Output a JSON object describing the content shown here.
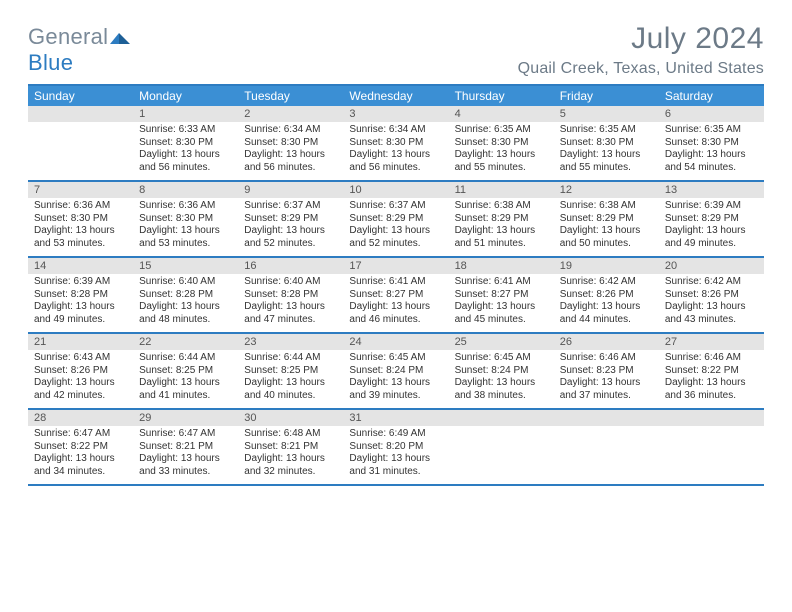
{
  "brand": {
    "part1": "General",
    "part2": "Blue"
  },
  "title": "July 2024",
  "location": "Quail Creek, Texas, United States",
  "colors": {
    "header_bar": "#3b8fd4",
    "rule": "#2d7cc1",
    "daynum_bg": "#e4e4e4",
    "text_muted": "#6c7a87",
    "logo_gray": "#7a8a99",
    "logo_blue": "#2d7cc1"
  },
  "dow": [
    "Sunday",
    "Monday",
    "Tuesday",
    "Wednesday",
    "Thursday",
    "Friday",
    "Saturday"
  ],
  "weeks": [
    [
      null,
      {
        "d": "1",
        "sr": "Sunrise: 6:33 AM",
        "ss": "Sunset: 8:30 PM",
        "dl1": "Daylight: 13 hours",
        "dl2": "and 56 minutes."
      },
      {
        "d": "2",
        "sr": "Sunrise: 6:34 AM",
        "ss": "Sunset: 8:30 PM",
        "dl1": "Daylight: 13 hours",
        "dl2": "and 56 minutes."
      },
      {
        "d": "3",
        "sr": "Sunrise: 6:34 AM",
        "ss": "Sunset: 8:30 PM",
        "dl1": "Daylight: 13 hours",
        "dl2": "and 56 minutes."
      },
      {
        "d": "4",
        "sr": "Sunrise: 6:35 AM",
        "ss": "Sunset: 8:30 PM",
        "dl1": "Daylight: 13 hours",
        "dl2": "and 55 minutes."
      },
      {
        "d": "5",
        "sr": "Sunrise: 6:35 AM",
        "ss": "Sunset: 8:30 PM",
        "dl1": "Daylight: 13 hours",
        "dl2": "and 55 minutes."
      },
      {
        "d": "6",
        "sr": "Sunrise: 6:35 AM",
        "ss": "Sunset: 8:30 PM",
        "dl1": "Daylight: 13 hours",
        "dl2": "and 54 minutes."
      }
    ],
    [
      {
        "d": "7",
        "sr": "Sunrise: 6:36 AM",
        "ss": "Sunset: 8:30 PM",
        "dl1": "Daylight: 13 hours",
        "dl2": "and 53 minutes."
      },
      {
        "d": "8",
        "sr": "Sunrise: 6:36 AM",
        "ss": "Sunset: 8:30 PM",
        "dl1": "Daylight: 13 hours",
        "dl2": "and 53 minutes."
      },
      {
        "d": "9",
        "sr": "Sunrise: 6:37 AM",
        "ss": "Sunset: 8:29 PM",
        "dl1": "Daylight: 13 hours",
        "dl2": "and 52 minutes."
      },
      {
        "d": "10",
        "sr": "Sunrise: 6:37 AM",
        "ss": "Sunset: 8:29 PM",
        "dl1": "Daylight: 13 hours",
        "dl2": "and 52 minutes."
      },
      {
        "d": "11",
        "sr": "Sunrise: 6:38 AM",
        "ss": "Sunset: 8:29 PM",
        "dl1": "Daylight: 13 hours",
        "dl2": "and 51 minutes."
      },
      {
        "d": "12",
        "sr": "Sunrise: 6:38 AM",
        "ss": "Sunset: 8:29 PM",
        "dl1": "Daylight: 13 hours",
        "dl2": "and 50 minutes."
      },
      {
        "d": "13",
        "sr": "Sunrise: 6:39 AM",
        "ss": "Sunset: 8:29 PM",
        "dl1": "Daylight: 13 hours",
        "dl2": "and 49 minutes."
      }
    ],
    [
      {
        "d": "14",
        "sr": "Sunrise: 6:39 AM",
        "ss": "Sunset: 8:28 PM",
        "dl1": "Daylight: 13 hours",
        "dl2": "and 49 minutes."
      },
      {
        "d": "15",
        "sr": "Sunrise: 6:40 AM",
        "ss": "Sunset: 8:28 PM",
        "dl1": "Daylight: 13 hours",
        "dl2": "and 48 minutes."
      },
      {
        "d": "16",
        "sr": "Sunrise: 6:40 AM",
        "ss": "Sunset: 8:28 PM",
        "dl1": "Daylight: 13 hours",
        "dl2": "and 47 minutes."
      },
      {
        "d": "17",
        "sr": "Sunrise: 6:41 AM",
        "ss": "Sunset: 8:27 PM",
        "dl1": "Daylight: 13 hours",
        "dl2": "and 46 minutes."
      },
      {
        "d": "18",
        "sr": "Sunrise: 6:41 AM",
        "ss": "Sunset: 8:27 PM",
        "dl1": "Daylight: 13 hours",
        "dl2": "and 45 minutes."
      },
      {
        "d": "19",
        "sr": "Sunrise: 6:42 AM",
        "ss": "Sunset: 8:26 PM",
        "dl1": "Daylight: 13 hours",
        "dl2": "and 44 minutes."
      },
      {
        "d": "20",
        "sr": "Sunrise: 6:42 AM",
        "ss": "Sunset: 8:26 PM",
        "dl1": "Daylight: 13 hours",
        "dl2": "and 43 minutes."
      }
    ],
    [
      {
        "d": "21",
        "sr": "Sunrise: 6:43 AM",
        "ss": "Sunset: 8:26 PM",
        "dl1": "Daylight: 13 hours",
        "dl2": "and 42 minutes."
      },
      {
        "d": "22",
        "sr": "Sunrise: 6:44 AM",
        "ss": "Sunset: 8:25 PM",
        "dl1": "Daylight: 13 hours",
        "dl2": "and 41 minutes."
      },
      {
        "d": "23",
        "sr": "Sunrise: 6:44 AM",
        "ss": "Sunset: 8:25 PM",
        "dl1": "Daylight: 13 hours",
        "dl2": "and 40 minutes."
      },
      {
        "d": "24",
        "sr": "Sunrise: 6:45 AM",
        "ss": "Sunset: 8:24 PM",
        "dl1": "Daylight: 13 hours",
        "dl2": "and 39 minutes."
      },
      {
        "d": "25",
        "sr": "Sunrise: 6:45 AM",
        "ss": "Sunset: 8:24 PM",
        "dl1": "Daylight: 13 hours",
        "dl2": "and 38 minutes."
      },
      {
        "d": "26",
        "sr": "Sunrise: 6:46 AM",
        "ss": "Sunset: 8:23 PM",
        "dl1": "Daylight: 13 hours",
        "dl2": "and 37 minutes."
      },
      {
        "d": "27",
        "sr": "Sunrise: 6:46 AM",
        "ss": "Sunset: 8:22 PM",
        "dl1": "Daylight: 13 hours",
        "dl2": "and 36 minutes."
      }
    ],
    [
      {
        "d": "28",
        "sr": "Sunrise: 6:47 AM",
        "ss": "Sunset: 8:22 PM",
        "dl1": "Daylight: 13 hours",
        "dl2": "and 34 minutes."
      },
      {
        "d": "29",
        "sr": "Sunrise: 6:47 AM",
        "ss": "Sunset: 8:21 PM",
        "dl1": "Daylight: 13 hours",
        "dl2": "and 33 minutes."
      },
      {
        "d": "30",
        "sr": "Sunrise: 6:48 AM",
        "ss": "Sunset: 8:21 PM",
        "dl1": "Daylight: 13 hours",
        "dl2": "and 32 minutes."
      },
      {
        "d": "31",
        "sr": "Sunrise: 6:49 AM",
        "ss": "Sunset: 8:20 PM",
        "dl1": "Daylight: 13 hours",
        "dl2": "and 31 minutes."
      },
      null,
      null,
      null
    ]
  ]
}
